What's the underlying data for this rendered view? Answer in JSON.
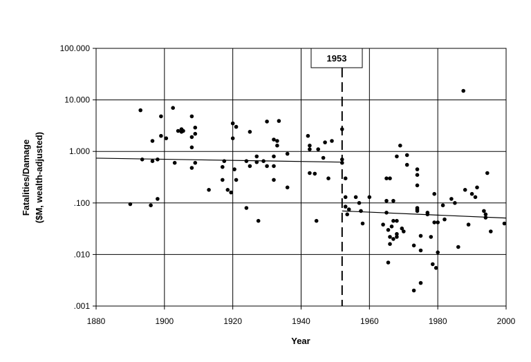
{
  "chart_data": {
    "type": "scatter",
    "xlabel": "Year",
    "ylabel_lines": [
      "Fatalities/Damage",
      "($M, wealth-adjusted)"
    ],
    "xlim": [
      1880,
      2000
    ],
    "ylim": [
      0.001,
      100
    ],
    "y_scale": "log",
    "grid": true,
    "x_ticks": [
      1880,
      1900,
      1920,
      1940,
      1960,
      1980,
      2000
    ],
    "x_tick_labels": [
      "1880",
      "1900",
      "1920",
      "1940",
      "1960",
      "1980",
      "2000"
    ],
    "y_ticks": [
      100,
      10,
      1,
      0.1,
      0.01,
      0.001
    ],
    "y_tick_labels": [
      "100.000",
      "10.000",
      "1.000",
      ".100",
      ".010",
      ".001"
    ],
    "annotation": {
      "label": "1953",
      "x": 1952
    },
    "points": [
      [
        1890,
        0.095
      ],
      [
        1893,
        6.3
      ],
      [
        1893.5,
        0.7
      ],
      [
        1896,
        0.09
      ],
      [
        1896.5,
        1.6
      ],
      [
        1896.5,
        0.65
      ],
      [
        1898,
        0.12
      ],
      [
        1898,
        0.7
      ],
      [
        1899,
        2.0
      ],
      [
        1899,
        4.8
      ],
      [
        1900.5,
        1.8
      ],
      [
        1902.5,
        7.0
      ],
      [
        1903,
        0.6
      ],
      [
        1904,
        2.5
      ],
      [
        1905,
        2.4
      ],
      [
        1905,
        2.7
      ],
      [
        1905.5,
        2.5
      ],
      [
        1908,
        4.8
      ],
      [
        1908,
        1.9
      ],
      [
        1908,
        1.2
      ],
      [
        1908,
        0.48
      ],
      [
        1909,
        0.6
      ],
      [
        1909,
        2.2
      ],
      [
        1909,
        2.9
      ],
      [
        1913,
        0.18
      ],
      [
        1917,
        0.28
      ],
      [
        1917,
        0.5
      ],
      [
        1917.5,
        0.65
      ],
      [
        1918.5,
        0.18
      ],
      [
        1919.5,
        0.16
      ],
      [
        1920,
        3.5
      ],
      [
        1920,
        1.8
      ],
      [
        1920.5,
        0.45
      ],
      [
        1921,
        3.0
      ],
      [
        1921,
        0.28
      ],
      [
        1924,
        0.08
      ],
      [
        1924,
        0.65
      ],
      [
        1925,
        2.4
      ],
      [
        1925,
        0.52
      ],
      [
        1927,
        0.8
      ],
      [
        1927,
        0.62
      ],
      [
        1927.5,
        0.045
      ],
      [
        1929,
        0.65
      ],
      [
        1930,
        3.8
      ],
      [
        1930,
        0.52
      ],
      [
        1932,
        1.7
      ],
      [
        1932,
        0.8
      ],
      [
        1932,
        0.52
      ],
      [
        1932,
        0.28
      ],
      [
        1933,
        1.3
      ],
      [
        1933,
        1.6
      ],
      [
        1933.5,
        3.9
      ],
      [
        1936,
        0.9
      ],
      [
        1936,
        0.2
      ],
      [
        1942,
        2.0
      ],
      [
        1942.5,
        1.3
      ],
      [
        1942.5,
        1.1
      ],
      [
        1942.5,
        0.38
      ],
      [
        1944,
        0.37
      ],
      [
        1944.5,
        0.045
      ],
      [
        1945,
        1.1
      ],
      [
        1946.5,
        0.75
      ],
      [
        1947,
        1.5
      ],
      [
        1948,
        0.3
      ],
      [
        1949,
        1.6
      ],
      [
        1952,
        2.7
      ],
      [
        1952,
        0.7
      ],
      [
        1952,
        0.6
      ],
      [
        1953,
        0.3
      ],
      [
        1953,
        0.13
      ],
      [
        1953,
        0.085
      ],
      [
        1953.5,
        0.06
      ],
      [
        1954,
        0.075
      ],
      [
        1956,
        0.13
      ],
      [
        1957,
        0.1
      ],
      [
        1957.5,
        0.07
      ],
      [
        1958,
        0.04
      ],
      [
        1960,
        0.13
      ],
      [
        1964,
        0.038
      ],
      [
        1965,
        0.11
      ],
      [
        1965,
        0.065
      ],
      [
        1965,
        0.3
      ],
      [
        1965.5,
        0.03
      ],
      [
        1965.5,
        0.007
      ],
      [
        1966,
        0.3
      ],
      [
        1966,
        0.022
      ],
      [
        1966,
        0.016
      ],
      [
        1966.5,
        0.035
      ],
      [
        1967,
        0.11
      ],
      [
        1967,
        0.045
      ],
      [
        1967,
        0.02
      ],
      [
        1968,
        0.8
      ],
      [
        1968,
        0.045
      ],
      [
        1968,
        0.025
      ],
      [
        1968,
        0.022
      ],
      [
        1969,
        1.3
      ],
      [
        1969.5,
        0.032
      ],
      [
        1970,
        0.028
      ],
      [
        1971,
        0.85
      ],
      [
        1971,
        0.55
      ],
      [
        1973,
        0.015
      ],
      [
        1973,
        0.002
      ],
      [
        1974,
        0.45
      ],
      [
        1974,
        0.35
      ],
      [
        1974,
        0.22
      ],
      [
        1974,
        0.08
      ],
      [
        1974,
        0.075
      ],
      [
        1974,
        0.07
      ],
      [
        1975,
        0.012
      ],
      [
        1975,
        0.023
      ],
      [
        1975,
        0.0028
      ],
      [
        1977,
        0.065
      ],
      [
        1977,
        0.06
      ],
      [
        1978,
        0.022
      ],
      [
        1978.5,
        0.0065
      ],
      [
        1979,
        0.15
      ],
      [
        1979,
        0.042
      ],
      [
        1979.5,
        0.0055
      ],
      [
        1980,
        0.011
      ],
      [
        1980,
        0.042
      ],
      [
        1981.5,
        0.09
      ],
      [
        1982,
        0.048
      ],
      [
        1984,
        0.12
      ],
      [
        1985,
        0.1
      ],
      [
        1986,
        0.014
      ],
      [
        1987.5,
        15
      ],
      [
        1988,
        0.18
      ],
      [
        1989,
        0.038
      ],
      [
        1990,
        0.15
      ],
      [
        1991,
        0.13
      ],
      [
        1991.5,
        0.2
      ],
      [
        1993.5,
        0.07
      ],
      [
        1994,
        0.06
      ],
      [
        1994,
        0.052
      ],
      [
        1994.5,
        0.38
      ],
      [
        1995.5,
        0.028
      ],
      [
        1999.5,
        0.04
      ]
    ],
    "trend_lines": [
      {
        "x": [
          1880,
          1952
        ],
        "y": [
          0.74,
          0.62
        ]
      },
      {
        "x": [
          1952,
          2000
        ],
        "y": [
          0.07,
          0.051
        ]
      }
    ]
  }
}
